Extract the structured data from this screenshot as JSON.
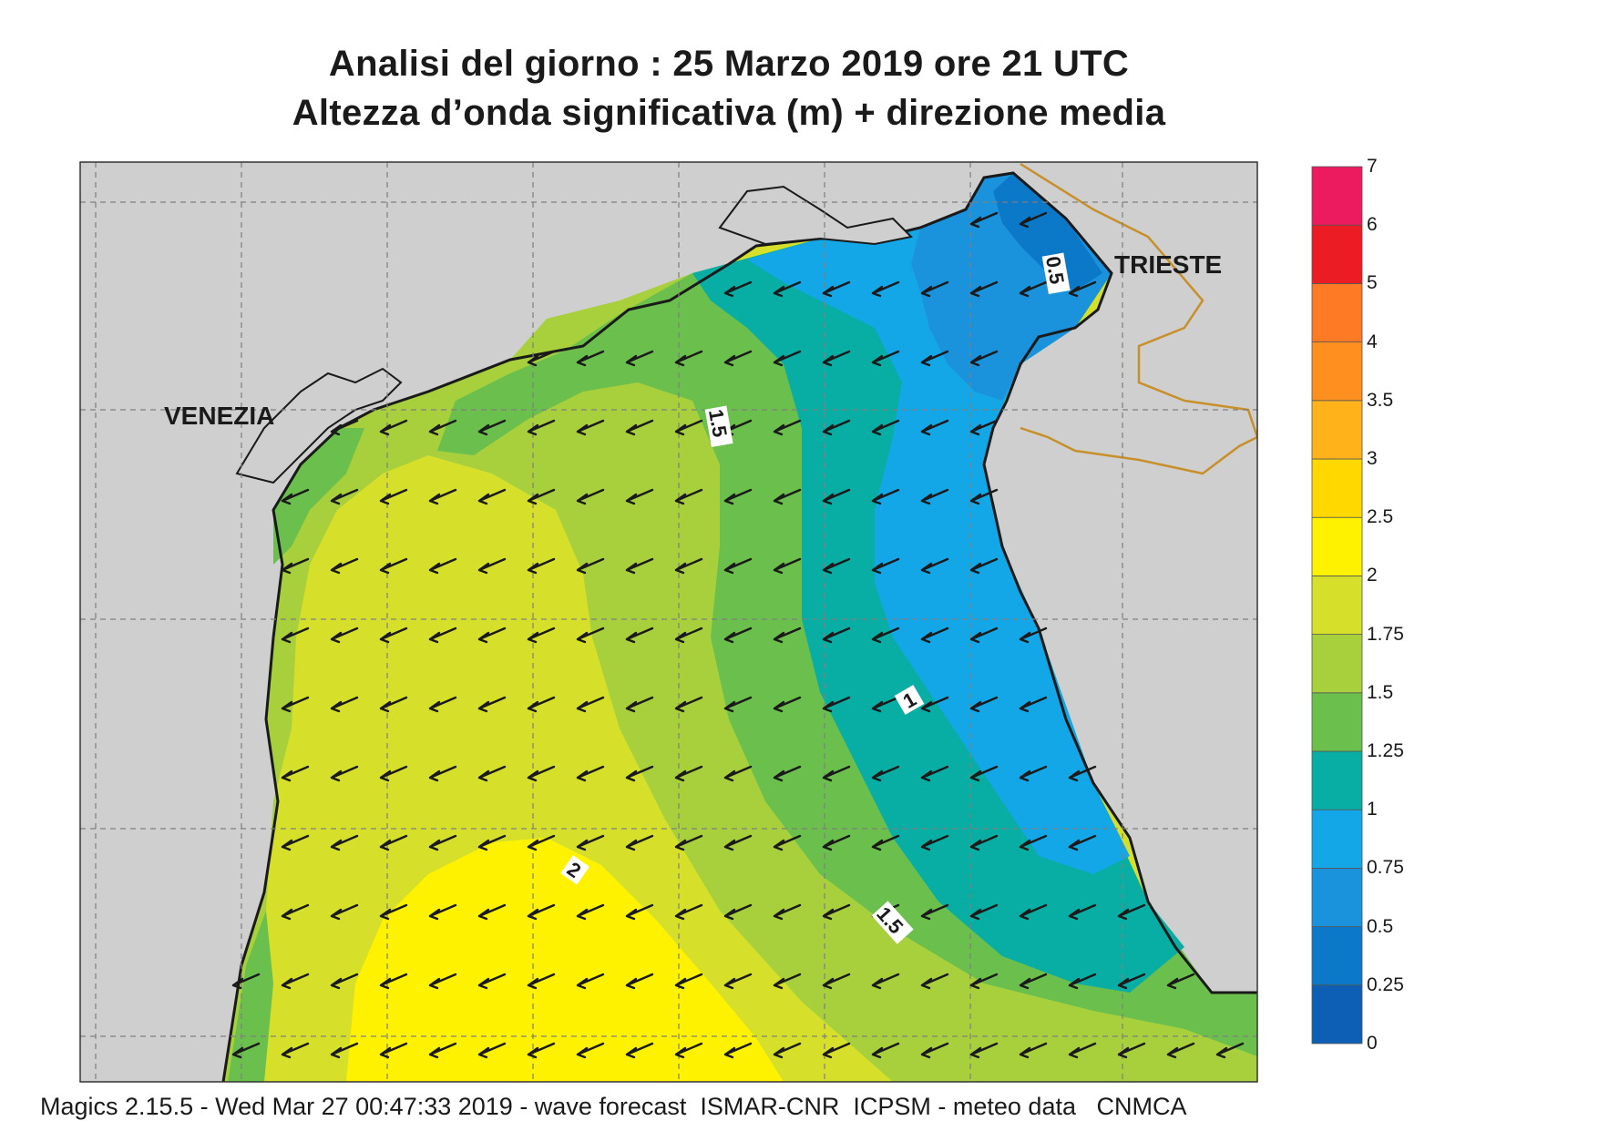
{
  "title": {
    "line1": "Analisi del giorno :  25   Marzo   2019   ore 21 UTC",
    "line2": "Altezza d’onda significativa (m) + direzione media"
  },
  "places": [
    {
      "name": "VENEZIA"
    },
    {
      "name": "TRIESTE"
    }
  ],
  "contour_labels": [
    "0.5",
    "1.5",
    "1",
    "2",
    "1.5"
  ],
  "footer": "Magics 2.15.5 - Wed Mar 27 00:47:33 2019 - wave forecast  ISMAR-CNR  ICPSM - meteo data   CNMCA",
  "legend": {
    "unit": "m",
    "ticks": [
      "0",
      "0.25",
      "0.5",
      "0.75",
      "1",
      "1.25",
      "1.5",
      "1.75",
      "2",
      "2.5",
      "3",
      "3.5",
      "4",
      "5",
      "6",
      "7"
    ],
    "colors": [
      "#0d5fb5",
      "#0b79c8",
      "#1b93dc",
      "#14a7e8",
      "#08aea4",
      "#6bbf4c",
      "#a8cf3c",
      "#d6e02a",
      "#fff200",
      "#ffd800",
      "#ffb21a",
      "#ff8f1e",
      "#ff7a24",
      "#ec1c24",
      "#ec1a5f"
    ]
  },
  "colors": {
    "land": "#cfcfcf",
    "coast": "#1a1a1a",
    "border": "#c8902a",
    "grid": "#7f7f7f",
    "arrow": "#1a1a1a"
  },
  "wave_direction": "toward west-southwest"
}
